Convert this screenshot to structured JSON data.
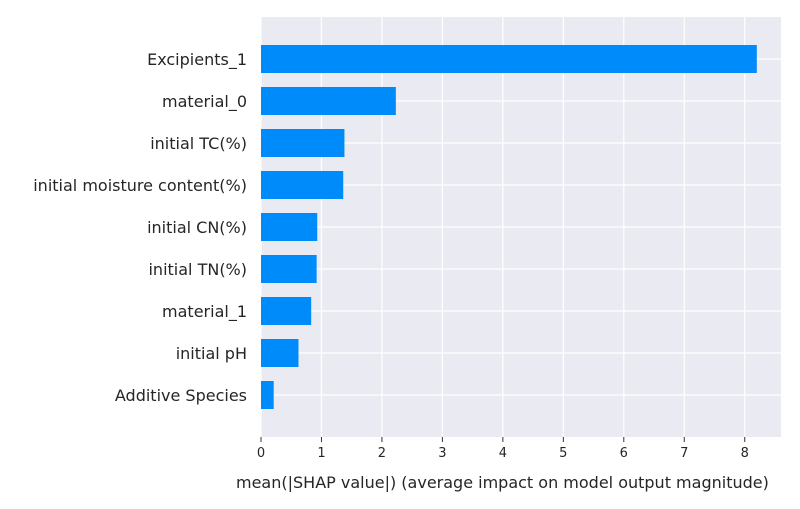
{
  "chart_data": {
    "type": "bar",
    "orientation": "horizontal",
    "title": "",
    "categories": [
      "Excipients_1",
      "material_0",
      "initial TC(%)",
      "initial moisture content(%)",
      "initial CN(%)",
      "initial TN(%)",
      "material_1",
      "initial pH",
      "Additive Species"
    ],
    "values": [
      8.2,
      2.23,
      1.38,
      1.36,
      0.93,
      0.92,
      0.83,
      0.62,
      0.21
    ],
    "xlabel": "mean(|SHAP value|) (average impact on model output magnitude)",
    "ylabel": "",
    "xlim": [
      0,
      8.6
    ],
    "xticks": [
      0,
      1,
      2,
      3,
      4,
      5,
      6,
      7,
      8
    ],
    "grid": true,
    "colors": {
      "bar": "#008bfb",
      "background": "#eaeaf2",
      "grid": "#ffffff",
      "text": "#262626"
    }
  }
}
